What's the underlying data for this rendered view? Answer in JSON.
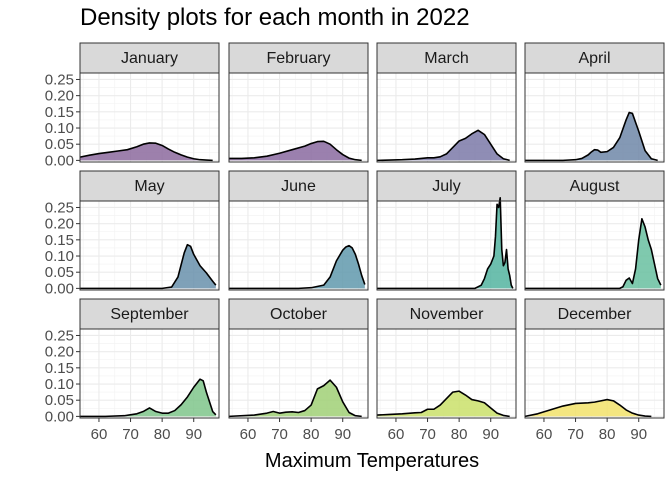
{
  "chart_data": {
    "type": "area",
    "title": "Density plots for each month in 2022",
    "xlabel": "Maximum Temperatures",
    "ylabel": "",
    "x_ticks": [
      60,
      70,
      80,
      90
    ],
    "y_ticks": [
      "0.00",
      "0.05",
      "0.10",
      "0.15",
      "0.20",
      "0.25"
    ],
    "xlim": [
      54,
      98
    ],
    "ylim": [
      -0.005,
      0.27
    ],
    "grid": true,
    "legend": "none",
    "panels": [
      {
        "name": "January",
        "color": "#8c6a9e",
        "x": [
          54,
          57,
          60,
          63,
          66,
          69,
          72,
          74,
          76,
          78,
          80,
          82,
          84,
          86,
          88,
          90,
          92,
          94,
          96
        ],
        "y": [
          0.01,
          0.016,
          0.021,
          0.025,
          0.029,
          0.033,
          0.042,
          0.05,
          0.054,
          0.053,
          0.046,
          0.035,
          0.025,
          0.017,
          0.01,
          0.005,
          0.002,
          0.001,
          0.0
        ]
      },
      {
        "name": "February",
        "color": "#8a6aa0",
        "x": [
          54,
          58,
          62,
          66,
          70,
          74,
          78,
          80,
          82,
          84,
          86,
          88,
          90,
          92,
          94,
          96
        ],
        "y": [
          0.006,
          0.006,
          0.008,
          0.013,
          0.022,
          0.033,
          0.044,
          0.052,
          0.058,
          0.059,
          0.05,
          0.033,
          0.018,
          0.007,
          0.002,
          0.0
        ]
      },
      {
        "name": "March",
        "color": "#7b79a8",
        "x": [
          54,
          58,
          62,
          66,
          70,
          72,
          74,
          76,
          78,
          80,
          82,
          84,
          86,
          88,
          90,
          92,
          94,
          96
        ],
        "y": [
          0.0,
          0.001,
          0.002,
          0.004,
          0.008,
          0.008,
          0.011,
          0.02,
          0.04,
          0.06,
          0.068,
          0.082,
          0.093,
          0.08,
          0.05,
          0.02,
          0.005,
          0.0
        ]
      },
      {
        "name": "April",
        "color": "#6f87a8",
        "x": [
          54,
          60,
          66,
          70,
          72,
          74,
          75,
          76,
          77,
          78,
          80,
          82,
          84,
          86,
          87,
          88,
          90,
          92,
          94,
          96
        ],
        "y": [
          0.0,
          0.0,
          0.0,
          0.002,
          0.006,
          0.017,
          0.026,
          0.033,
          0.032,
          0.025,
          0.027,
          0.04,
          0.07,
          0.125,
          0.148,
          0.145,
          0.09,
          0.03,
          0.005,
          0.0
        ]
      },
      {
        "name": "May",
        "color": "#6990ab",
        "x": [
          54,
          75,
          80,
          83,
          85,
          87,
          88,
          89,
          90,
          92,
          94,
          96,
          97
        ],
        "y": [
          0.0,
          0.0,
          0.0,
          0.004,
          0.035,
          0.11,
          0.135,
          0.13,
          0.105,
          0.07,
          0.048,
          0.022,
          0.01
        ]
      },
      {
        "name": "June",
        "color": "#6099ad",
        "x": [
          54,
          76,
          80,
          84,
          86,
          88,
          90,
          91,
          92,
          93,
          94,
          95,
          96,
          97
        ],
        "y": [
          0.0,
          0.0,
          0.002,
          0.01,
          0.035,
          0.085,
          0.118,
          0.128,
          0.132,
          0.125,
          0.105,
          0.075,
          0.04,
          0.012
        ]
      },
      {
        "name": "July",
        "color": "#53b4a0",
        "x": [
          54,
          85,
          87,
          88,
          89,
          90,
          91,
          91.5,
          92,
          92.5,
          93,
          93.5,
          94,
          94.5,
          95,
          95.5,
          96,
          96.5,
          97
        ],
        "y": [
          0.0,
          0.0,
          0.01,
          0.03,
          0.06,
          0.075,
          0.1,
          0.16,
          0.26,
          0.25,
          0.28,
          0.12,
          0.07,
          0.08,
          0.12,
          0.06,
          0.04,
          0.01,
          0.0
        ]
      },
      {
        "name": "August",
        "color": "#68c0a0",
        "x": [
          54,
          84,
          85,
          86,
          87,
          88,
          89,
          90,
          91,
          92,
          93,
          94,
          95,
          96,
          97
        ],
        "y": [
          0.0,
          0.0,
          0.005,
          0.025,
          0.032,
          0.015,
          0.06,
          0.15,
          0.215,
          0.19,
          0.15,
          0.12,
          0.075,
          0.03,
          0.01
        ]
      },
      {
        "name": "September",
        "color": "#7fc68b",
        "x": [
          54,
          62,
          68,
          72,
          74,
          76,
          78,
          80,
          82,
          84,
          86,
          88,
          90,
          92,
          93,
          94,
          96,
          97
        ],
        "y": [
          0.0,
          0.0,
          0.002,
          0.008,
          0.015,
          0.026,
          0.015,
          0.01,
          0.01,
          0.018,
          0.036,
          0.06,
          0.09,
          0.115,
          0.11,
          0.075,
          0.015,
          0.005
        ]
      },
      {
        "name": "October",
        "color": "#a0d075",
        "x": [
          54,
          62,
          66,
          68,
          70,
          72,
          74,
          76,
          78,
          80,
          82,
          84,
          86,
          88,
          90,
          92,
          94,
          96
        ],
        "y": [
          0.0,
          0.004,
          0.01,
          0.015,
          0.01,
          0.013,
          0.014,
          0.012,
          0.018,
          0.035,
          0.085,
          0.095,
          0.112,
          0.09,
          0.045,
          0.012,
          0.002,
          0.0
        ]
      },
      {
        "name": "November",
        "color": "#cae16a",
        "x": [
          54,
          58,
          62,
          66,
          68,
          70,
          72,
          74,
          76,
          78,
          80,
          82,
          84,
          86,
          88,
          90,
          92,
          94,
          96
        ],
        "y": [
          0.004,
          0.006,
          0.008,
          0.011,
          0.012,
          0.022,
          0.022,
          0.035,
          0.055,
          0.075,
          0.078,
          0.066,
          0.052,
          0.048,
          0.042,
          0.026,
          0.01,
          0.003,
          0.0
        ]
      },
      {
        "name": "December",
        "color": "#f2e26a",
        "x": [
          54,
          58,
          62,
          66,
          70,
          74,
          76,
          78,
          80,
          82,
          84,
          86,
          88,
          90,
          92,
          94
        ],
        "y": [
          0.0,
          0.008,
          0.02,
          0.032,
          0.04,
          0.042,
          0.044,
          0.048,
          0.052,
          0.048,
          0.035,
          0.02,
          0.01,
          0.004,
          0.001,
          0.0
        ]
      }
    ]
  }
}
